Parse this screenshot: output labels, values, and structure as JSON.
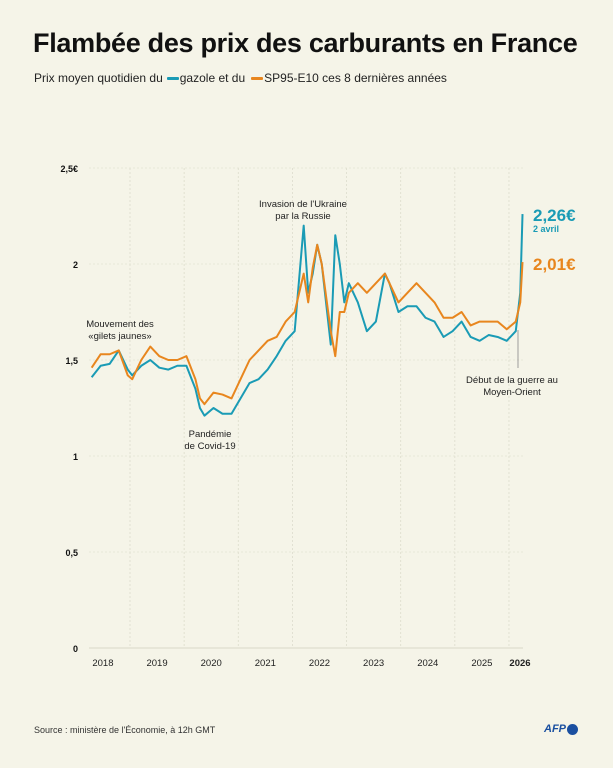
{
  "title": "Flambée des prix des carburants en France",
  "subtitle": {
    "part1": "Prix moyen quotidien du",
    "part2": "gazole et du",
    "part3": "SP95-E10 ces 8 dernières années"
  },
  "source": "Source : ministère de l'Économie, à 12h GMT",
  "logo": "AFP",
  "colors": {
    "gazole": "#1a9bb5",
    "sp95": "#e8861e",
    "background": "#f5f4e8"
  },
  "chart_data": {
    "type": "line",
    "title": "Flambée des prix des carburants en France",
    "ylim": [
      0,
      2.5
    ],
    "yticks": [
      "0",
      "0,5",
      "1",
      "1,5",
      "2",
      "2,5€"
    ],
    "ytick_values": [
      0,
      0.5,
      1,
      1.5,
      2,
      2.5
    ],
    "xticks": [
      "2018",
      "2019",
      "2020",
      "2021",
      "2022",
      "2023",
      "2024",
      "2025",
      "2026"
    ],
    "grid": "vertical year separators",
    "x": [
      "2018-04",
      "2018-06",
      "2018-08",
      "2018-10",
      "2018-12",
      "2019-01",
      "2019-03",
      "2019-05",
      "2019-07",
      "2019-09",
      "2019-11",
      "2020-01",
      "2020-03",
      "2020-04",
      "2020-05",
      "2020-07",
      "2020-09",
      "2020-11",
      "2021-01",
      "2021-03",
      "2021-05",
      "2021-07",
      "2021-09",
      "2021-11",
      "2022-01",
      "2022-03",
      "2022-04",
      "2022-05",
      "2022-06",
      "2022-07",
      "2022-09",
      "2022-10",
      "2022-11",
      "2022-12",
      "2023-01",
      "2023-03",
      "2023-05",
      "2023-07",
      "2023-09",
      "2023-10",
      "2023-12",
      "2024-02",
      "2024-04",
      "2024-06",
      "2024-08",
      "2024-10",
      "2024-12",
      "2025-02",
      "2025-04",
      "2025-06",
      "2025-08",
      "2025-10",
      "2025-12",
      "2026-02",
      "2026-03",
      "2026-04"
    ],
    "series": [
      {
        "name": "gazole",
        "color": "#1a9bb5",
        "values": [
          1.41,
          1.47,
          1.48,
          1.55,
          1.45,
          1.42,
          1.47,
          1.5,
          1.46,
          1.45,
          1.47,
          1.47,
          1.35,
          1.25,
          1.21,
          1.25,
          1.22,
          1.22,
          1.3,
          1.38,
          1.4,
          1.45,
          1.52,
          1.6,
          1.65,
          2.2,
          1.85,
          1.95,
          2.1,
          2.0,
          1.58,
          2.15,
          2.0,
          1.8,
          1.9,
          1.8,
          1.65,
          1.7,
          1.95,
          1.9,
          1.75,
          1.78,
          1.78,
          1.72,
          1.7,
          1.62,
          1.65,
          1.7,
          1.62,
          1.6,
          1.63,
          1.62,
          1.6,
          1.65,
          1.85,
          2.26
        ]
      },
      {
        "name": "SP95-E10",
        "color": "#e8861e",
        "values": [
          1.46,
          1.53,
          1.53,
          1.55,
          1.42,
          1.4,
          1.5,
          1.57,
          1.52,
          1.5,
          1.5,
          1.52,
          1.4,
          1.3,
          1.27,
          1.33,
          1.32,
          1.3,
          1.4,
          1.5,
          1.55,
          1.6,
          1.62,
          1.7,
          1.75,
          1.95,
          1.8,
          1.98,
          2.1,
          2.0,
          1.65,
          1.52,
          1.75,
          1.75,
          1.85,
          1.9,
          1.85,
          1.9,
          1.95,
          1.9,
          1.8,
          1.85,
          1.9,
          1.85,
          1.8,
          1.72,
          1.72,
          1.75,
          1.68,
          1.7,
          1.7,
          1.7,
          1.66,
          1.7,
          1.8,
          2.01
        ]
      }
    ],
    "end_labels": {
      "gazole": "2,26€",
      "gazole_date": "2 avril",
      "sp95": "2,01€"
    },
    "annotations": [
      {
        "date": "2018-11",
        "lines": [
          "Mouvement des",
          "«gilets jaunes»"
        ]
      },
      {
        "date": "2020-04",
        "lines": [
          "Pandémie",
          "de Covid-19"
        ]
      },
      {
        "date": "2022-02",
        "lines": [
          "Invasion de l'Ukraine",
          "par la Russie"
        ]
      },
      {
        "date": "2026-02",
        "lines": [
          "Début de la guerre au",
          "Moyen-Orient"
        ]
      }
    ]
  }
}
